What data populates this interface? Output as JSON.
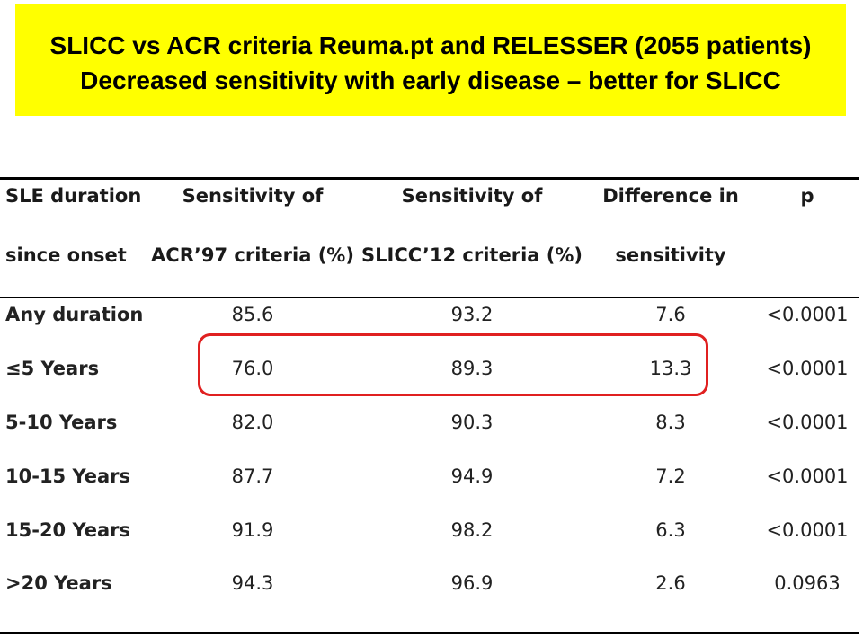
{
  "title": {
    "line1": "SLICC vs ACR criteria Reuma.pt and RELESSER (2055 patients)",
    "line2": "Decreased sensitivity with early disease – better for SLICC"
  },
  "table": {
    "headers": [
      {
        "line1": "SLE duration",
        "line2": "since onset"
      },
      {
        "line1": "Sensitivity of",
        "line2": "ACR’97 criteria (%)"
      },
      {
        "line1": "Sensitivity of",
        "line2": "SLICC’12 criteria (%)"
      },
      {
        "line1": "Difference in",
        "line2": "sensitivity"
      },
      {
        "line1": "p",
        "line2": ""
      }
    ],
    "rows": [
      {
        "duration": "Any duration",
        "acr": "85.6",
        "slicc": "93.2",
        "diff": "7.6",
        "p": "<0.0001"
      },
      {
        "duration": "≤5 Years",
        "acr": "76.0",
        "slicc": "89.3",
        "diff": "13.3",
        "p": "<0.0001"
      },
      {
        "duration": "5-10 Years",
        "acr": "82.0",
        "slicc": "90.3",
        "diff": "8.3",
        "p": "<0.0001"
      },
      {
        "duration": "10-15 Years",
        "acr": "87.7",
        "slicc": "94.9",
        "diff": "7.2",
        "p": "<0.0001"
      },
      {
        "duration": "15-20 Years",
        "acr": "91.9",
        "slicc": "98.2",
        "diff": "6.3",
        "p": "<0.0001"
      },
      {
        "duration": ">20 Years",
        "acr": "94.3",
        "slicc": "96.9",
        "diff": "2.6",
        "p": "0.0963"
      }
    ]
  },
  "colors": {
    "banner": "#ffff00",
    "highlight": "#e02020"
  }
}
